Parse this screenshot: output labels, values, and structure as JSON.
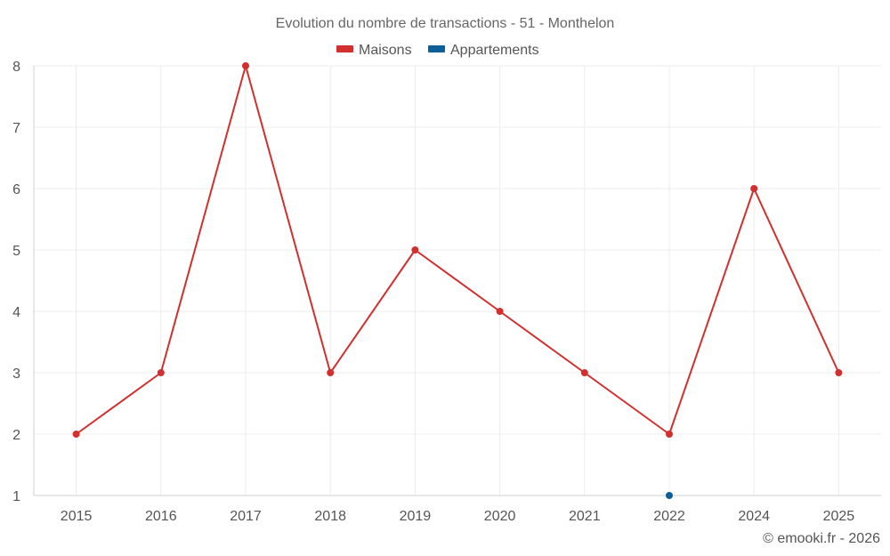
{
  "chart_data": {
    "type": "line",
    "title": "Evolution du nombre de transactions - 51 - Monthelon",
    "categories": [
      "2015",
      "2016",
      "2017",
      "2018",
      "2019",
      "2020",
      "2021",
      "2022",
      "2024",
      "2025"
    ],
    "series": [
      {
        "name": "Maisons",
        "color": "#d32f2f",
        "values": [
          2,
          3,
          8,
          3,
          5,
          4,
          3,
          2,
          6,
          3
        ]
      },
      {
        "name": "Appartements",
        "color": "#0d5f9a",
        "values": [
          null,
          null,
          null,
          null,
          null,
          null,
          null,
          1,
          null,
          null
        ]
      }
    ],
    "yticks": [
      "1",
      "2",
      "3",
      "4",
      "5",
      "6",
      "7",
      "8"
    ],
    "ylim": [
      1,
      8
    ],
    "xlabel": "",
    "ylabel": "",
    "legend_position": "top-center",
    "grid": true
  },
  "credit": "© emooki.fr - 2026"
}
